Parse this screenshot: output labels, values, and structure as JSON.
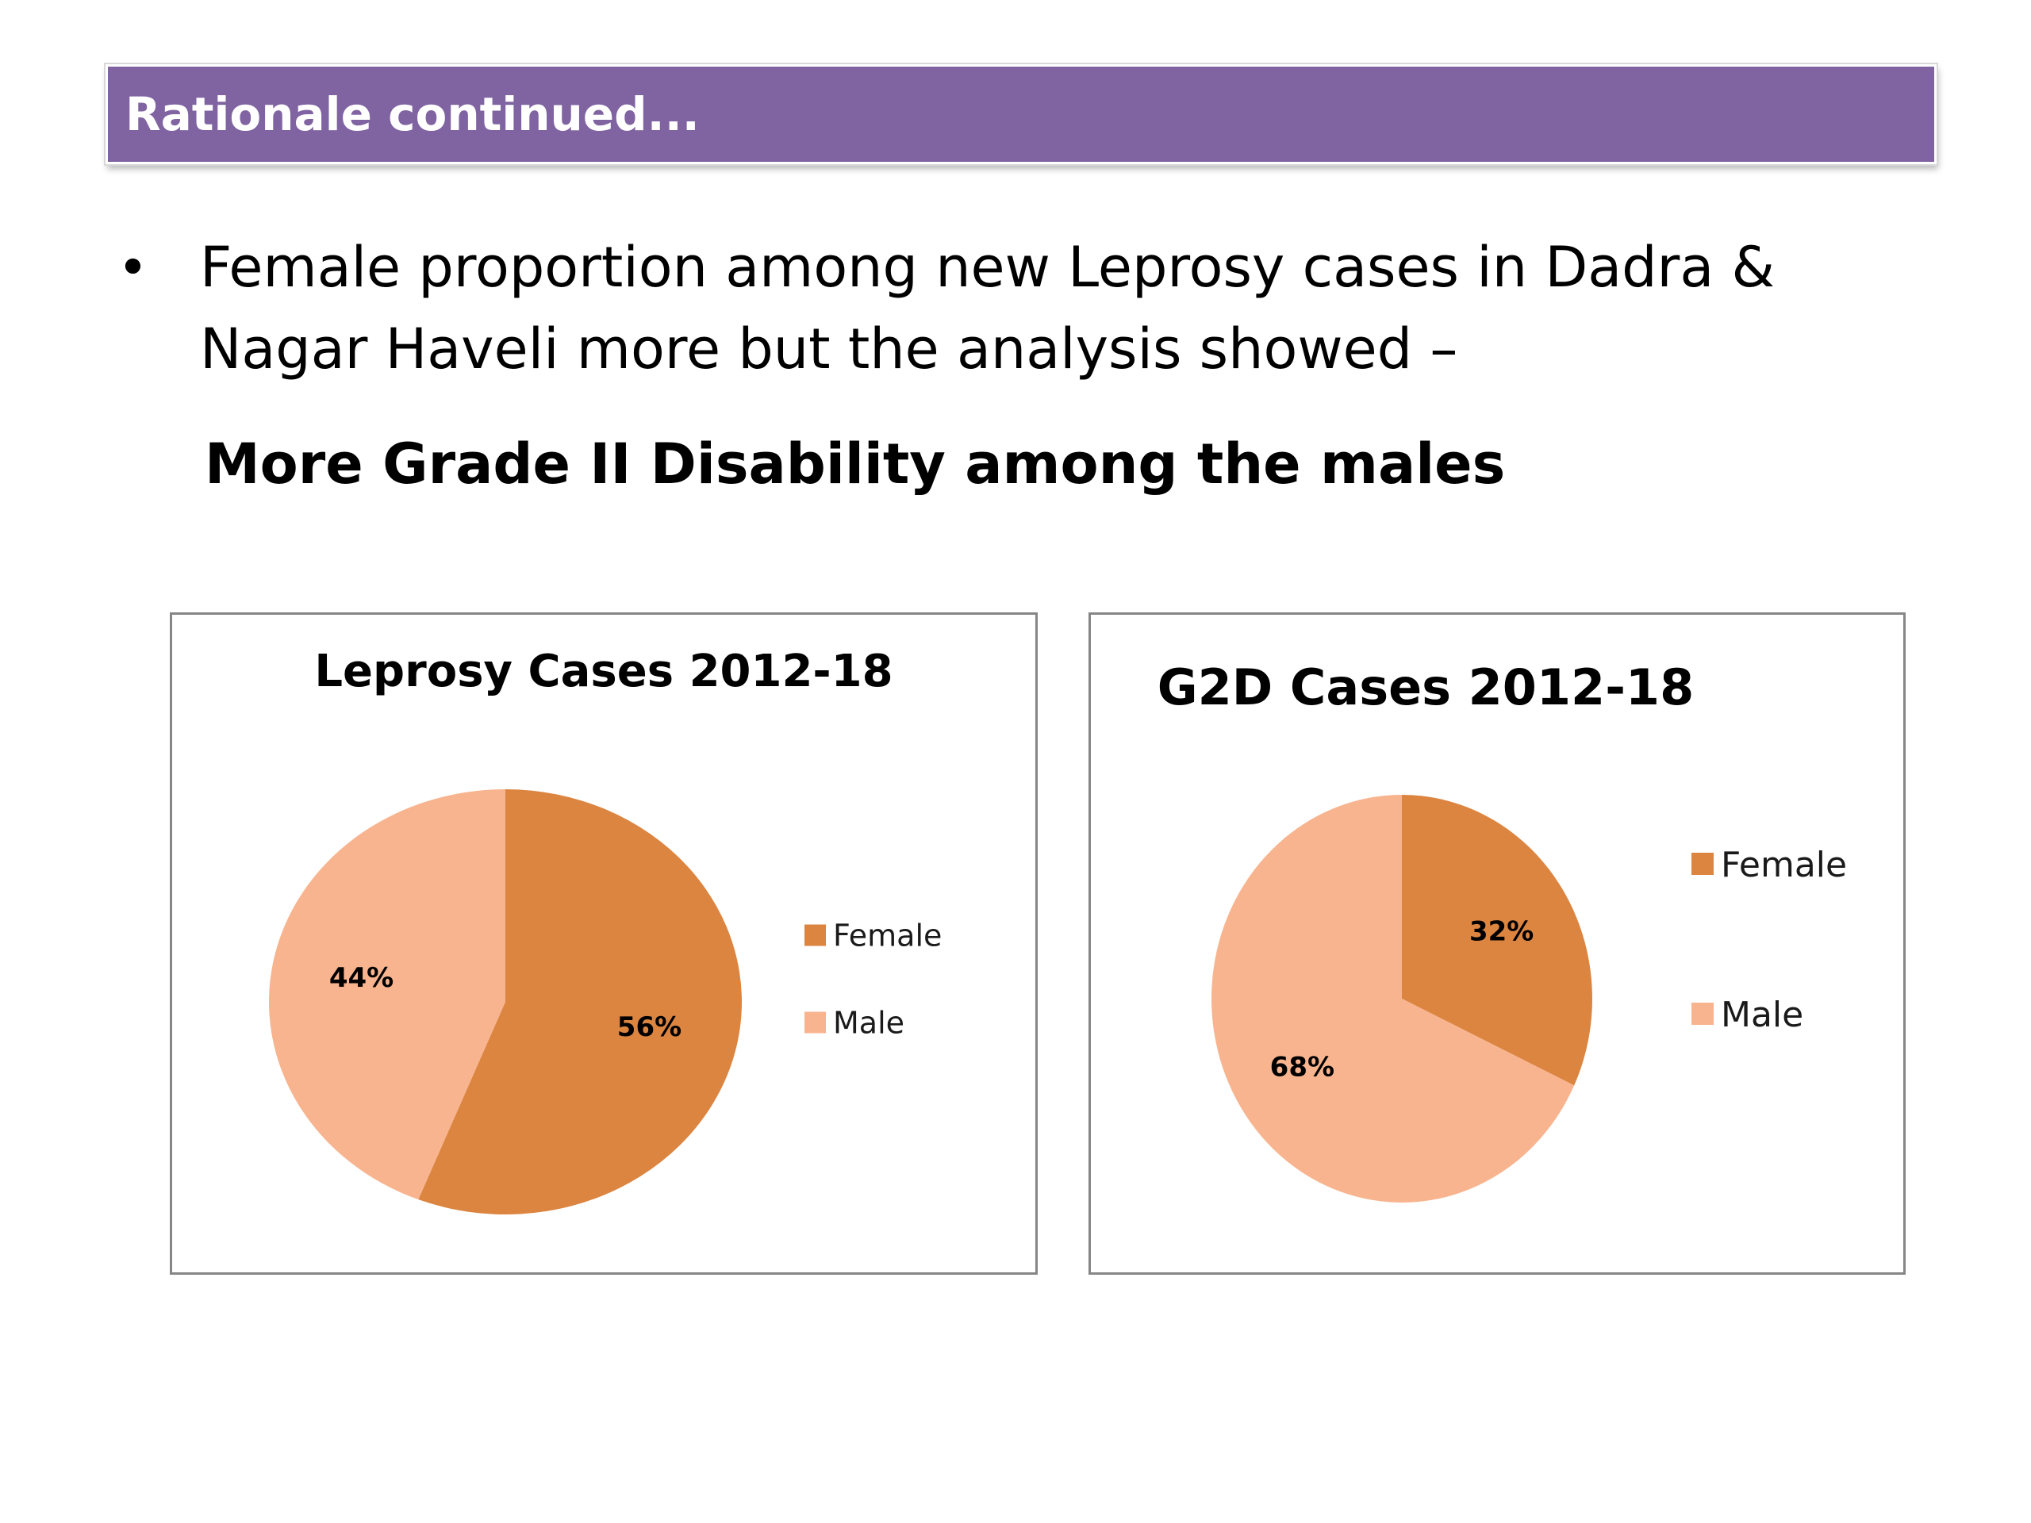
{
  "slide": {
    "title": "Rationale continued...",
    "bullet_symbol": "•",
    "bullet_text": "Female proportion among new Leprosy cases in Dadra & Nagar Haveli more but the analysis showed –",
    "highlight": "More Grade II Disability among the males"
  },
  "colors": {
    "title_bar": "#8064a2",
    "female": "#dc8541",
    "male": "#f8b48e"
  },
  "chart_data": [
    {
      "type": "pie",
      "title": "Leprosy Cases 2012-18",
      "categories": [
        "Female",
        "Male"
      ],
      "values": [
        56,
        44
      ],
      "labels": [
        "56%",
        "44%"
      ],
      "legend_position": "right"
    },
    {
      "type": "pie",
      "title": "G2D Cases 2012-18",
      "categories": [
        "Female",
        "Male"
      ],
      "values": [
        32,
        68
      ],
      "labels": [
        "32%",
        "68%"
      ],
      "legend_position": "right"
    }
  ]
}
